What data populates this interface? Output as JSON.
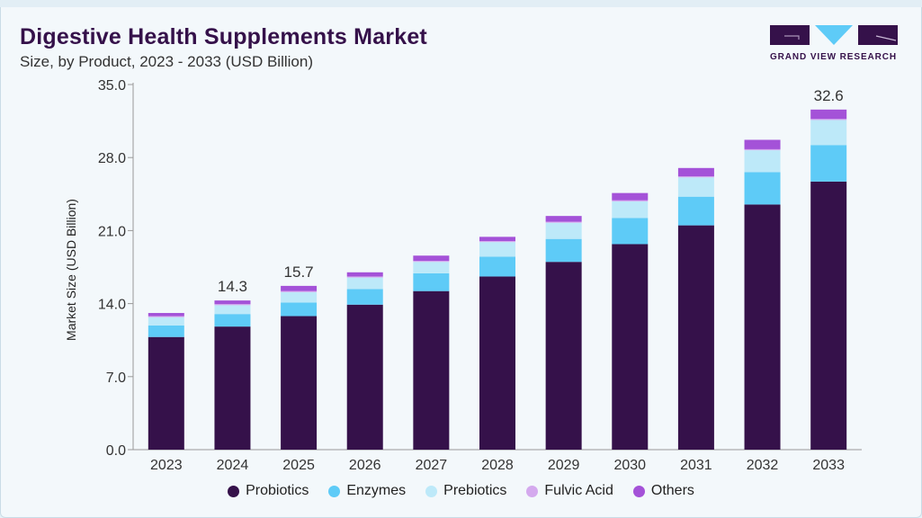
{
  "header": {
    "title": "Digestive Health Supplements Market",
    "subtitle": "Size, by Product, 2023 - 2033 (USD Billion)"
  },
  "logo": {
    "text": "GRAND VIEW RESEARCH"
  },
  "chart_data": {
    "type": "bar",
    "stacked": true,
    "title": "Digestive Health Supplements Market",
    "subtitle": "Size, by Product, 2023 - 2033 (USD Billion)",
    "xlabel": "",
    "ylabel": "Market Size (USD Billion)",
    "ylim": [
      0,
      35
    ],
    "yticks": [
      "0.0",
      "7.0",
      "14.0",
      "21.0",
      "28.0",
      "35.0"
    ],
    "grid": false,
    "legend_position": "bottom",
    "categories": [
      "2023",
      "2024",
      "2025",
      "2026",
      "2027",
      "2028",
      "2029",
      "2030",
      "2031",
      "2032",
      "2033"
    ],
    "series": [
      {
        "name": "Probiotics",
        "color": "#35114a",
        "values": [
          10.8,
          11.8,
          12.8,
          13.9,
          15.2,
          16.6,
          18.0,
          19.7,
          21.5,
          23.5,
          25.7
        ]
      },
      {
        "name": "Enzymes",
        "color": "#5ecbf7",
        "values": [
          1.1,
          1.2,
          1.3,
          1.5,
          1.7,
          1.9,
          2.2,
          2.5,
          2.75,
          3.1,
          3.5
        ]
      },
      {
        "name": "Prebiotics",
        "color": "#bde9f9",
        "values": [
          0.8,
          0.85,
          1.0,
          1.1,
          1.1,
          1.4,
          1.55,
          1.6,
          1.85,
          2.1,
          2.4
        ]
      },
      {
        "name": "Fulvic Acid",
        "color": "#d4a9ee",
        "values": [
          0.1,
          0.1,
          0.1,
          0.1,
          0.1,
          0.1,
          0.1,
          0.1,
          0.1,
          0.1,
          0.1
        ]
      },
      {
        "name": "Others",
        "color": "#a452d8",
        "values": [
          0.3,
          0.35,
          0.5,
          0.4,
          0.5,
          0.4,
          0.55,
          0.7,
          0.8,
          0.9,
          0.9
        ]
      }
    ],
    "data_labels": [
      {
        "category": "2024",
        "text": "14.3"
      },
      {
        "category": "2025",
        "text": "15.7"
      },
      {
        "category": "2033",
        "text": "32.6"
      }
    ]
  }
}
